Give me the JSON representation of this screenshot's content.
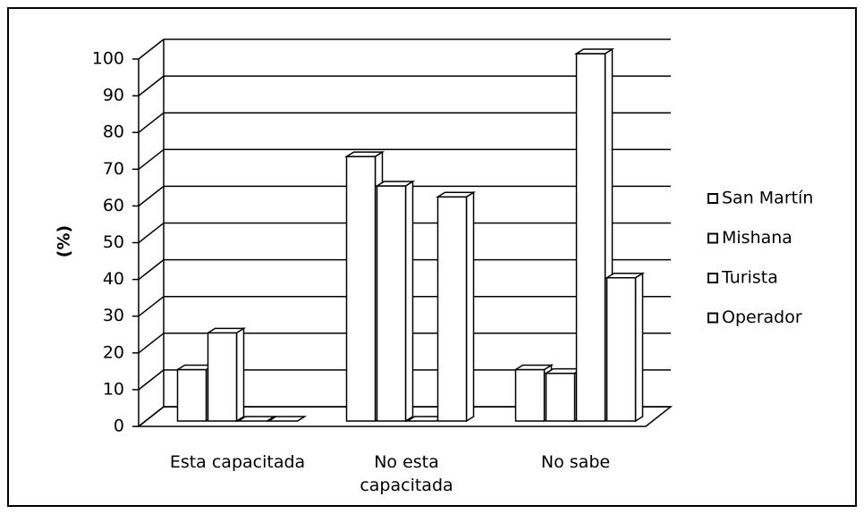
{
  "chart_data": {
    "type": "bar3d",
    "categories": [
      "Esta capacitada",
      "No esta capacitada",
      "No sabe"
    ],
    "series": [
      {
        "name": "San Martín",
        "color": "#ffffff",
        "values": [
          14,
          72,
          14
        ]
      },
      {
        "name": "Mishana",
        "color": "#ffffff",
        "values": [
          24,
          64,
          13
        ]
      },
      {
        "name": "Turista",
        "color": "#ffffff",
        "values": [
          0,
          0,
          100
        ]
      },
      {
        "name": "Operador",
        "color": "#ffffff",
        "values": [
          0,
          61,
          39
        ]
      }
    ],
    "y_label": "(%)",
    "ylim": [
      0,
      100
    ],
    "yticks": [
      0,
      10,
      20,
      30,
      40,
      50,
      60,
      70,
      80,
      90,
      100
    ],
    "grid": true,
    "legend": "right"
  }
}
